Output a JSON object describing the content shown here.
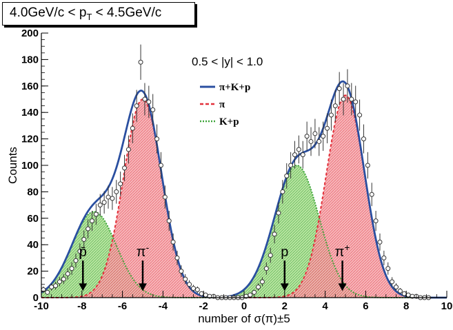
{
  "title": {
    "pre": "4.0GeV/c < p",
    "sub": "T",
    "post": " < 4.5GeV/c"
  },
  "rapidity_label": "0.5 < |y| < 1.0",
  "colors": {
    "total": "#2a4fa0",
    "pion": "#e2303a",
    "pion_fill": "#f4a8ad",
    "kp": "#3ea53a",
    "kp_fill": "#b3e39a",
    "points": "#333333"
  },
  "chart_data": {
    "type": "line",
    "xlabel": "number of σ(π)±5",
    "ylabel": "Counts",
    "xlim": [
      -10,
      10
    ],
    "ylim": [
      0,
      200
    ],
    "xticks": [
      -10,
      -8,
      -6,
      -4,
      -2,
      0,
      2,
      4,
      6,
      8,
      10
    ],
    "yticks": [
      0,
      20,
      40,
      60,
      80,
      100,
      120,
      140,
      160,
      180,
      200
    ],
    "legend": [
      {
        "label": "π+K+p",
        "style": "solid",
        "color_key": "total"
      },
      {
        "label": "π",
        "style": "dashed",
        "color_key": "pion"
      },
      {
        "label": "K+p",
        "style": "dotted",
        "color_key": "kp"
      }
    ],
    "series": [
      {
        "name": "π",
        "components": [
          {
            "amp": 150,
            "mean": -5.0,
            "sigma": 0.95
          },
          {
            "amp": 153,
            "mean": 5.0,
            "sigma": 0.95
          }
        ]
      },
      {
        "name": "K+p",
        "components": [
          {
            "amp": 65,
            "mean": -7.4,
            "sigma": 1.1
          },
          {
            "amp": 100,
            "mean": 2.6,
            "sigma": 1.1
          }
        ]
      }
    ],
    "data_points": [
      {
        "x": -9.9,
        "y": 6
      },
      {
        "x": -9.7,
        "y": 4
      },
      {
        "x": -9.5,
        "y": 8
      },
      {
        "x": -9.3,
        "y": 9
      },
      {
        "x": -9.1,
        "y": 12
      },
      {
        "x": -8.9,
        "y": 14
      },
      {
        "x": -8.7,
        "y": 18
      },
      {
        "x": -8.5,
        "y": 22
      },
      {
        "x": -8.3,
        "y": 28
      },
      {
        "x": -8.1,
        "y": 35
      },
      {
        "x": -7.9,
        "y": 44
      },
      {
        "x": -7.7,
        "y": 52
      },
      {
        "x": -7.5,
        "y": 58
      },
      {
        "x": -7.3,
        "y": 63
      },
      {
        "x": -7.1,
        "y": 70
      },
      {
        "x": -6.9,
        "y": 72
      },
      {
        "x": -6.7,
        "y": 76
      },
      {
        "x": -6.5,
        "y": 75
      },
      {
        "x": -6.3,
        "y": 80
      },
      {
        "x": -6.1,
        "y": 86
      },
      {
        "x": -5.9,
        "y": 98
      },
      {
        "x": -5.7,
        "y": 112
      },
      {
        "x": -5.5,
        "y": 128
      },
      {
        "x": -5.3,
        "y": 145
      },
      {
        "x": -5.1,
        "y": 178
      },
      {
        "x": -4.9,
        "y": 150
      },
      {
        "x": -4.7,
        "y": 148
      },
      {
        "x": -4.5,
        "y": 142
      },
      {
        "x": -4.3,
        "y": 120
      },
      {
        "x": -4.1,
        "y": 100
      },
      {
        "x": -3.9,
        "y": 76
      },
      {
        "x": -3.7,
        "y": 58
      },
      {
        "x": -3.5,
        "y": 42
      },
      {
        "x": -3.3,
        "y": 30
      },
      {
        "x": -3.1,
        "y": 20
      },
      {
        "x": -2.9,
        "y": 14
      },
      {
        "x": -2.7,
        "y": 10
      },
      {
        "x": -2.5,
        "y": 7
      },
      {
        "x": -2.3,
        "y": 6
      },
      {
        "x": -2.1,
        "y": 3
      },
      {
        "x": -1.9,
        "y": 2
      },
      {
        "x": -1.7,
        "y": 1
      },
      {
        "x": -1.5,
        "y": 1
      },
      {
        "x": -1.3,
        "y": 0
      },
      {
        "x": -1.1,
        "y": 0
      },
      {
        "x": -0.9,
        "y": 0
      },
      {
        "x": -0.7,
        "y": 0
      },
      {
        "x": -0.5,
        "y": 0
      },
      {
        "x": -0.3,
        "y": 0
      },
      {
        "x": -0.1,
        "y": 0
      },
      {
        "x": 0.1,
        "y": 1
      },
      {
        "x": 0.3,
        "y": 2
      },
      {
        "x": 0.5,
        "y": 4
      },
      {
        "x": 0.7,
        "y": 8
      },
      {
        "x": 0.9,
        "y": 12
      },
      {
        "x": 1.1,
        "y": 22
      },
      {
        "x": 1.3,
        "y": 32
      },
      {
        "x": 1.5,
        "y": 48
      },
      {
        "x": 1.7,
        "y": 64
      },
      {
        "x": 1.9,
        "y": 80
      },
      {
        "x": 2.1,
        "y": 92
      },
      {
        "x": 2.3,
        "y": 100
      },
      {
        "x": 2.5,
        "y": 108
      },
      {
        "x": 2.7,
        "y": 112
      },
      {
        "x": 2.9,
        "y": 108
      },
      {
        "x": 3.1,
        "y": 122
      },
      {
        "x": 3.3,
        "y": 118
      },
      {
        "x": 3.5,
        "y": 124
      },
      {
        "x": 3.7,
        "y": 118
      },
      {
        "x": 3.9,
        "y": 122
      },
      {
        "x": 4.1,
        "y": 128
      },
      {
        "x": 4.3,
        "y": 138
      },
      {
        "x": 4.5,
        "y": 145
      },
      {
        "x": 4.7,
        "y": 158
      },
      {
        "x": 4.9,
        "y": 150
      },
      {
        "x": 5.1,
        "y": 160
      },
      {
        "x": 5.3,
        "y": 150
      },
      {
        "x": 5.5,
        "y": 148
      },
      {
        "x": 5.7,
        "y": 138
      },
      {
        "x": 5.9,
        "y": 120
      },
      {
        "x": 6.1,
        "y": 100
      },
      {
        "x": 6.3,
        "y": 78
      },
      {
        "x": 6.5,
        "y": 58
      },
      {
        "x": 6.7,
        "y": 42
      },
      {
        "x": 6.9,
        "y": 30
      },
      {
        "x": 7.1,
        "y": 22
      },
      {
        "x": 7.3,
        "y": 12
      },
      {
        "x": 7.5,
        "y": 8
      },
      {
        "x": 7.7,
        "y": 5
      },
      {
        "x": 7.9,
        "y": 3
      },
      {
        "x": 8.1,
        "y": 2
      },
      {
        "x": 8.3,
        "y": 1
      },
      {
        "x": 8.5,
        "y": 1
      },
      {
        "x": 8.7,
        "y": 0
      },
      {
        "x": 8.9,
        "y": 0
      },
      {
        "x": 9.1,
        "y": 0
      }
    ],
    "annotations": [
      {
        "label": "p̄",
        "x": -7.95,
        "y_from": 28,
        "y_to": 5
      },
      {
        "label": "π",
        "sup": "-",
        "x": -5.0,
        "y_from": 28,
        "y_to": 5
      },
      {
        "label": "p",
        "x": 2.0,
        "y_from": 28,
        "y_to": 5
      },
      {
        "label": "π",
        "sup": "+",
        "x": 4.85,
        "y_from": 28,
        "y_to": 5
      }
    ]
  }
}
